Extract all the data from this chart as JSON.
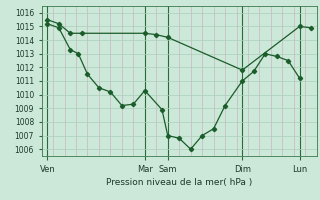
{
  "title": "",
  "xlabel": "Pression niveau de la mer( hPa )",
  "ylabel": "",
  "bg_color": "#cce8d8",
  "grid_color": "#aacfba",
  "line_color": "#1a5c2a",
  "dark_vline_color": "#2a6a3a",
  "ylim": [
    1005.5,
    1016.5
  ],
  "yticks": [
    1006,
    1007,
    1008,
    1009,
    1010,
    1011,
    1012,
    1013,
    1014,
    1015,
    1016
  ],
  "xlim": [
    0,
    24
  ],
  "day_labels": [
    "Ven",
    "Mar",
    "Sam",
    "Dim",
    "Lun"
  ],
  "day_positions": [
    0.5,
    9.0,
    11.0,
    17.5,
    22.5
  ],
  "vline_positions": [
    0.5,
    9.0,
    11.0,
    17.5,
    22.5
  ],
  "series1_x": [
    0.5,
    1.5,
    2.5,
    3.2,
    4.0,
    5.0,
    6.0,
    7.0,
    8.0,
    9.0,
    10.5,
    11.0,
    12.0,
    13.0,
    14.0,
    15.0,
    16.0,
    17.5,
    18.5,
    19.5,
    20.5,
    21.5,
    22.5
  ],
  "series1_y": [
    1015.2,
    1014.9,
    1013.3,
    1013.0,
    1011.5,
    1010.5,
    1010.2,
    1009.2,
    1009.3,
    1010.3,
    1008.9,
    1007.0,
    1006.8,
    1006.0,
    1007.0,
    1007.5,
    1009.2,
    1011.0,
    1011.7,
    1013.0,
    1012.8,
    1012.5,
    1011.2
  ],
  "series2_x": [
    0.5,
    1.5,
    2.5,
    3.5,
    9.0,
    10.0,
    11.0,
    17.5,
    22.5,
    23.5
  ],
  "series2_y": [
    1015.5,
    1015.2,
    1014.5,
    1014.5,
    1014.5,
    1014.4,
    1014.2,
    1011.8,
    1015.0,
    1014.9
  ]
}
